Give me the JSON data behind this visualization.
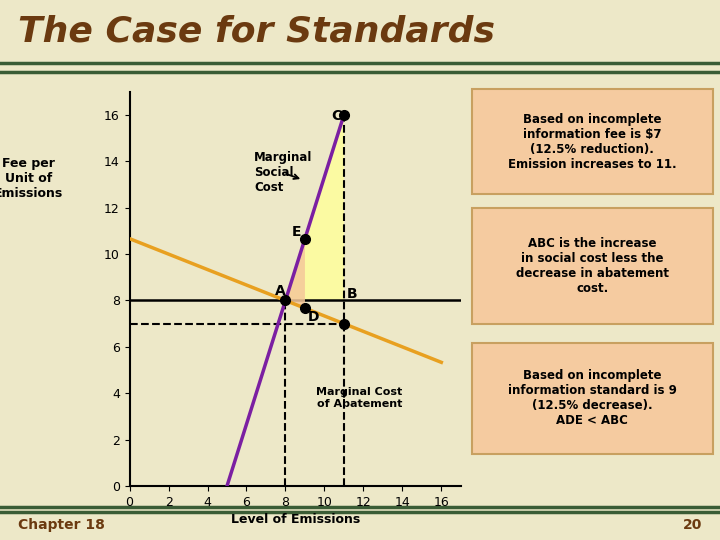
{
  "title": "The Case for Standards",
  "title_color": "#6B3A10",
  "title_fontsize": 26,
  "bg_color": "#EDE8C8",
  "ylabel": "Fee per\nUnit of\nEmissions",
  "xlabel": "Level of Emissions",
  "ylim": [
    0,
    17
  ],
  "xlim": [
    0,
    17
  ],
  "yticks": [
    0,
    2,
    4,
    6,
    8,
    10,
    12,
    14,
    16
  ],
  "xticks": [
    0,
    2,
    4,
    6,
    8,
    10,
    12,
    14,
    16
  ],
  "green_line_color": "#3A5C35",
  "gold_line_color": "#8B7020",
  "msc_color": "#7B1FA2",
  "mca_color": "#E8A020",
  "fee_line_y": 8,
  "dashed_y": 7,
  "dashed_x1": 8,
  "dashed_x2": 11,
  "shade_color": "#FFFF99",
  "shade_alpha": 0.8,
  "triangle_color": "#F5C89A",
  "triangle_alpha": 0.85,
  "msc_label": "Marginal\nSocial\nCost",
  "mca_label": "Marginal Cost\nof Abatement",
  "box1_text": "Based on incomplete\ninformation fee is $7\n(12.5% reduction).\nEmission increases to 11.",
  "box2_text": "ABC is the increase\nin social cost less the\ndecrease in abatement\ncost.",
  "box3_text": "Based on incomplete\ninformation standard is 9\n(12.5% decrease).\nADE < ABC",
  "box_facecolor": "#F5CBA0",
  "box_edgecolor": "#C8A060",
  "chapter_text": "Chapter 18",
  "page_text": "20",
  "footer_fontsize": 10,
  "separator_green": "#3A5C35",
  "separator_gold": "#8B7020"
}
